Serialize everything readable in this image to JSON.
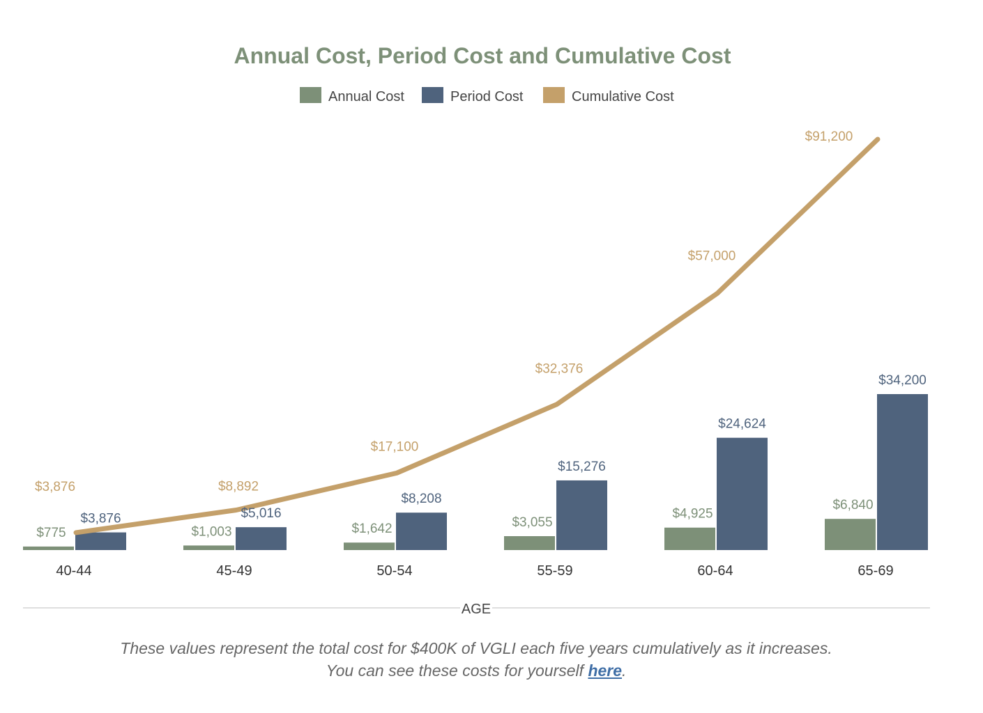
{
  "chart_data": {
    "type": "bar",
    "title": "Annual Cost, Period Cost and Cumulative Cost",
    "xlabel": "AGE",
    "ylabel": "",
    "ylim": [
      0,
      91200
    ],
    "grid": false,
    "legend_position": "top-center",
    "categories": [
      "40-44",
      "45-49",
      "50-54",
      "55-59",
      "60-64",
      "65-69"
    ],
    "series": [
      {
        "name": "Annual Cost",
        "kind": "bar",
        "color": "#7d9078",
        "label_color": "#7d9078",
        "values": [
          775,
          1003,
          1642,
          3055,
          4925,
          6840
        ],
        "labels": [
          "$775",
          "$1,003",
          "$1,642",
          "$3,055",
          "$4,925",
          "$6,840"
        ]
      },
      {
        "name": "Period Cost",
        "kind": "bar",
        "color": "#4f637d",
        "label_color": "#4f637d",
        "values": [
          3876,
          5016,
          8208,
          15276,
          24624,
          34200
        ],
        "labels": [
          "$3,876",
          "$5,016",
          "$8,208",
          "$15,276",
          "$24,624",
          "$34,200"
        ]
      },
      {
        "name": "Cumulative Cost",
        "kind": "line",
        "color": "#c4a06a",
        "label_color": "#c4a06a",
        "values": [
          3876,
          8892,
          17100,
          32376,
          57000,
          91200
        ],
        "labels": [
          "$3,876",
          "$8,892",
          "$17,100",
          "$32,376",
          "$57,000",
          "$91,200"
        ]
      }
    ]
  },
  "footnote": {
    "line1": "These values represent the total cost for $400K of VGLI each five years cumulatively as it increases.",
    "line2_prefix": "You can see these costs for yourself ",
    "link_text": "here",
    "line2_suffix": "."
  }
}
